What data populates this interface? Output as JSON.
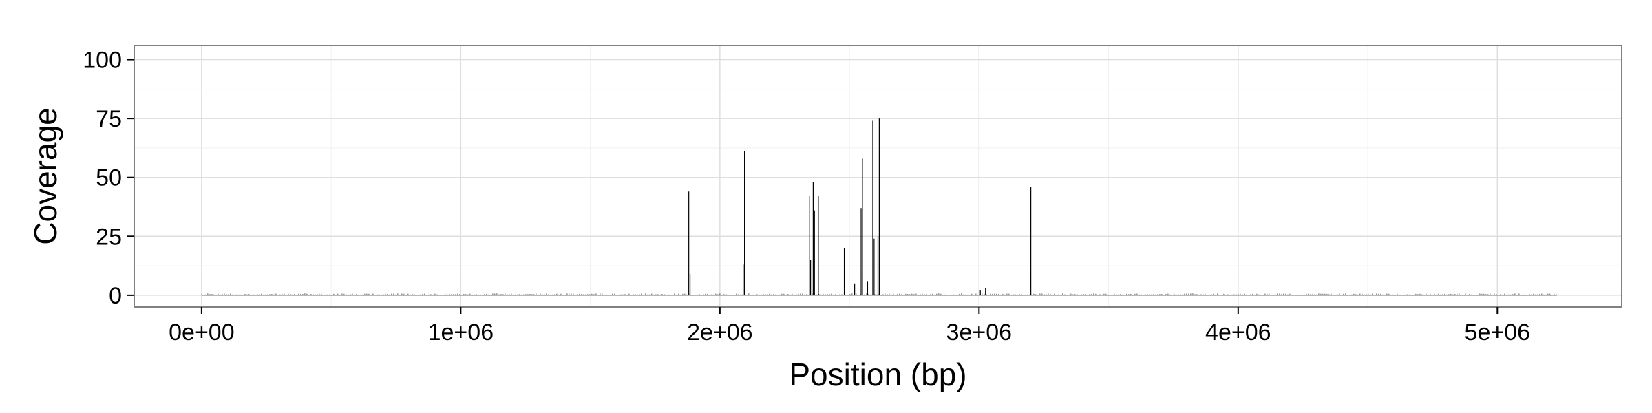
{
  "chart_data": {
    "type": "line",
    "xlabel": "Position (bp)",
    "ylabel": "Coverage",
    "xlim": [
      -260000,
      5480000
    ],
    "ylim": [
      -5,
      106
    ],
    "x_ticks": [
      0,
      1000000,
      2000000,
      3000000,
      4000000,
      5000000
    ],
    "x_tick_labels": [
      "0e+00",
      "1e+06",
      "2e+06",
      "3e+06",
      "4e+06",
      "5e+06"
    ],
    "y_ticks": [
      0,
      25,
      50,
      75,
      100
    ],
    "y_tick_labels": [
      "0",
      "25",
      "50",
      "75",
      "100"
    ],
    "grid": true,
    "series": [
      {
        "x": [
          1880000,
          1885000,
          2090000,
          2095000,
          2345000,
          2350000,
          2360000,
          2365000,
          2380000,
          2480000,
          2520000,
          2545000,
          2550000,
          2570000,
          2590000,
          2595000,
          2610000,
          2615000,
          3005000,
          3025000,
          3200000
        ],
        "y": [
          44,
          9,
          13,
          61,
          42,
          15,
          48,
          36,
          42,
          20,
          5,
          37,
          58,
          6,
          74,
          24,
          25,
          75,
          2,
          3,
          46
        ]
      }
    ]
  }
}
